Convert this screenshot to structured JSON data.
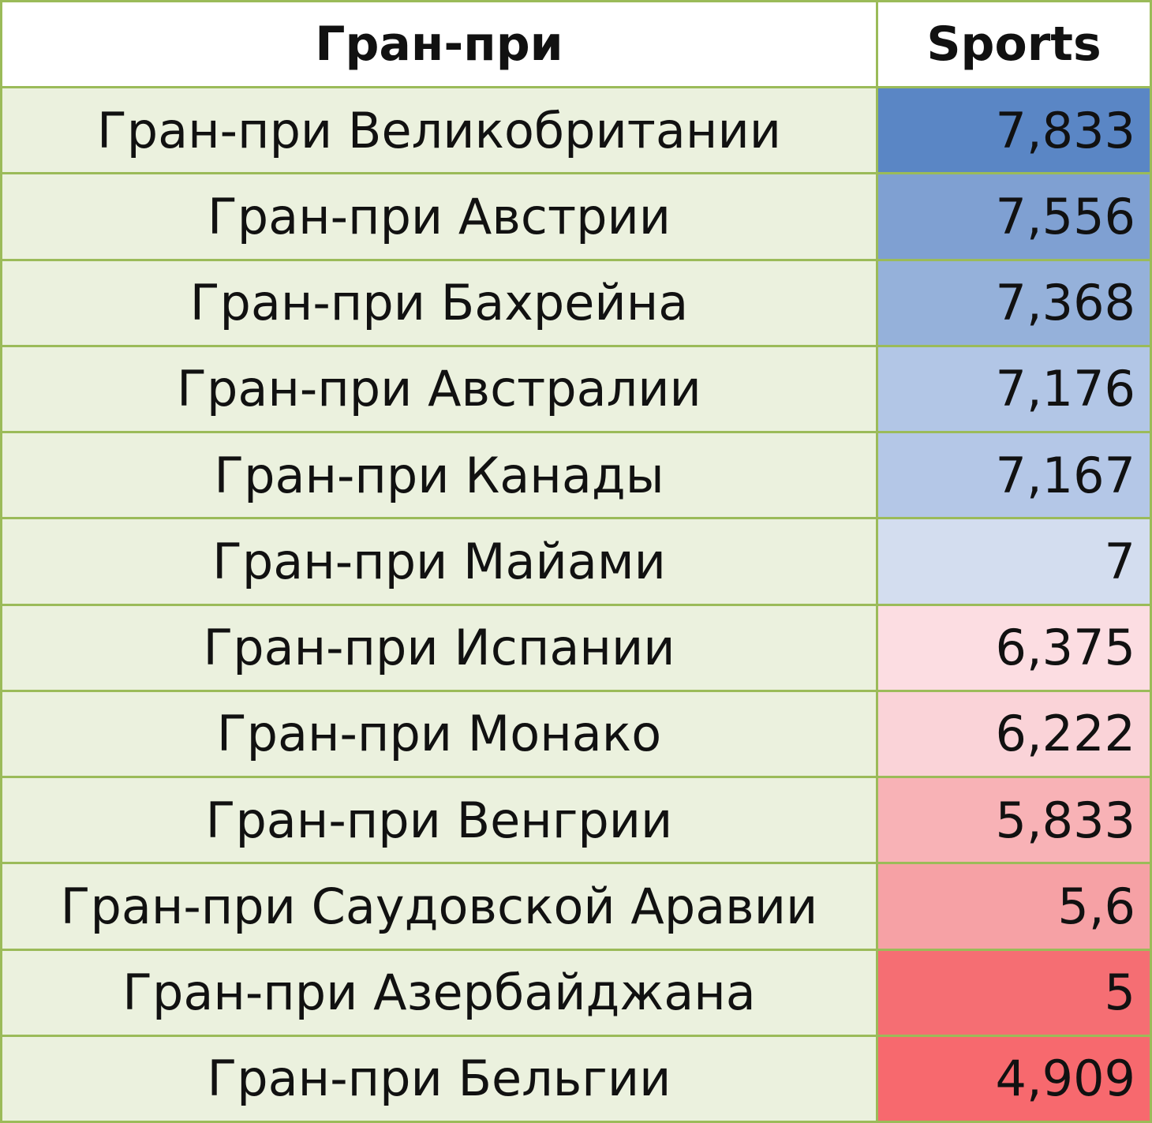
{
  "table": {
    "header": [
      "Гран-при",
      "Sports"
    ],
    "rows": [
      [
        "Гран-при Великобритании",
        "7,833"
      ],
      [
        "Гран-при Австрии",
        "7,556"
      ],
      [
        "Гран-при Бахрейна",
        "7,368"
      ],
      [
        "Гран-при Австралии",
        "7,176"
      ],
      [
        "Гран-при Канады",
        "7,167"
      ],
      [
        "Гран-при Майами",
        "7"
      ],
      [
        "Гран-при Испании",
        "6,375"
      ],
      [
        "Гран-при Монако",
        "6,222"
      ],
      [
        "Гран-при Венгрии",
        "5,833"
      ],
      [
        "Гран-при Саудовской Аравии",
        "5,6"
      ],
      [
        "Гран-при Азербайджана",
        "5"
      ],
      [
        "Гран-при Бельгии",
        "4,909"
      ]
    ],
    "row_colors": [
      "#5a86c5",
      "#7fa0d2",
      "#95b1da",
      "#b2c6e6",
      "#b4c7e7",
      "#d3ddef",
      "#fcdde2",
      "#fad3d8",
      "#f8b2b6",
      "#f6a1a5",
      "#f56e73",
      "#f7696e"
    ],
    "label_fill": "#ebf1de",
    "header_fill": "#ffffff",
    "border_color": "#9bbb59"
  }
}
